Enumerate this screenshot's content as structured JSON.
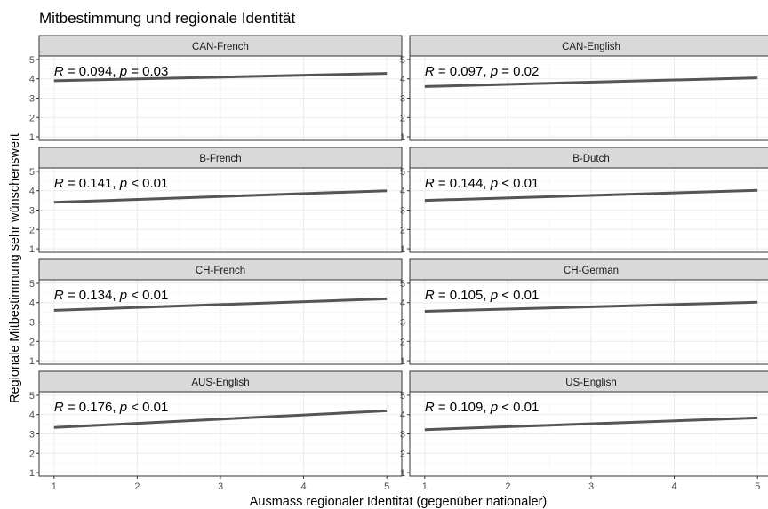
{
  "chart_data": {
    "type": "line",
    "title": "Mitbestimmung und regionale Identität",
    "xlabel": "Ausmass regionaler Identität (gegenüber nationaler)",
    "ylabel": "Regionale Mitbestimmung sehr wünschenswert",
    "xlim": [
      1,
      5
    ],
    "ylim": [
      1,
      5
    ],
    "xticks": [
      1,
      2,
      3,
      4,
      5
    ],
    "yticks": [
      1,
      2,
      3,
      4,
      5
    ],
    "grid": true,
    "panels": [
      {
        "name": "CAN-French",
        "annotation": {
          "R": "0.094",
          "p": "= 0.03"
        },
        "x": [
          1,
          5
        ],
        "y": [
          3.9,
          4.28
        ]
      },
      {
        "name": "CAN-English",
        "annotation": {
          "R": "0.097",
          "p": "= 0.02"
        },
        "x": [
          1,
          5
        ],
        "y": [
          3.6,
          4.05
        ]
      },
      {
        "name": "B-French",
        "annotation": {
          "R": "0.141",
          "p": "< 0.01"
        },
        "x": [
          1,
          5
        ],
        "y": [
          3.4,
          4.0
        ]
      },
      {
        "name": "B-Dutch",
        "annotation": {
          "R": "0.144",
          "p": "< 0.01"
        },
        "x": [
          1,
          5
        ],
        "y": [
          3.5,
          4.02
        ]
      },
      {
        "name": "CH-French",
        "annotation": {
          "R": "0.134",
          "p": "< 0.01"
        },
        "x": [
          1,
          5
        ],
        "y": [
          3.6,
          4.2
        ]
      },
      {
        "name": "CH-German",
        "annotation": {
          "R": "0.105",
          "p": "< 0.01"
        },
        "x": [
          1,
          5
        ],
        "y": [
          3.55,
          4.02
        ]
      },
      {
        "name": "AUS-English",
        "annotation": {
          "R": "0.176",
          "p": "< 0.01"
        },
        "x": [
          1,
          5
        ],
        "y": [
          3.33,
          4.2
        ]
      },
      {
        "name": "US-English",
        "annotation": {
          "R": "0.109",
          "p": "< 0.01"
        },
        "x": [
          1,
          5
        ],
        "y": [
          3.22,
          3.83
        ]
      }
    ]
  }
}
